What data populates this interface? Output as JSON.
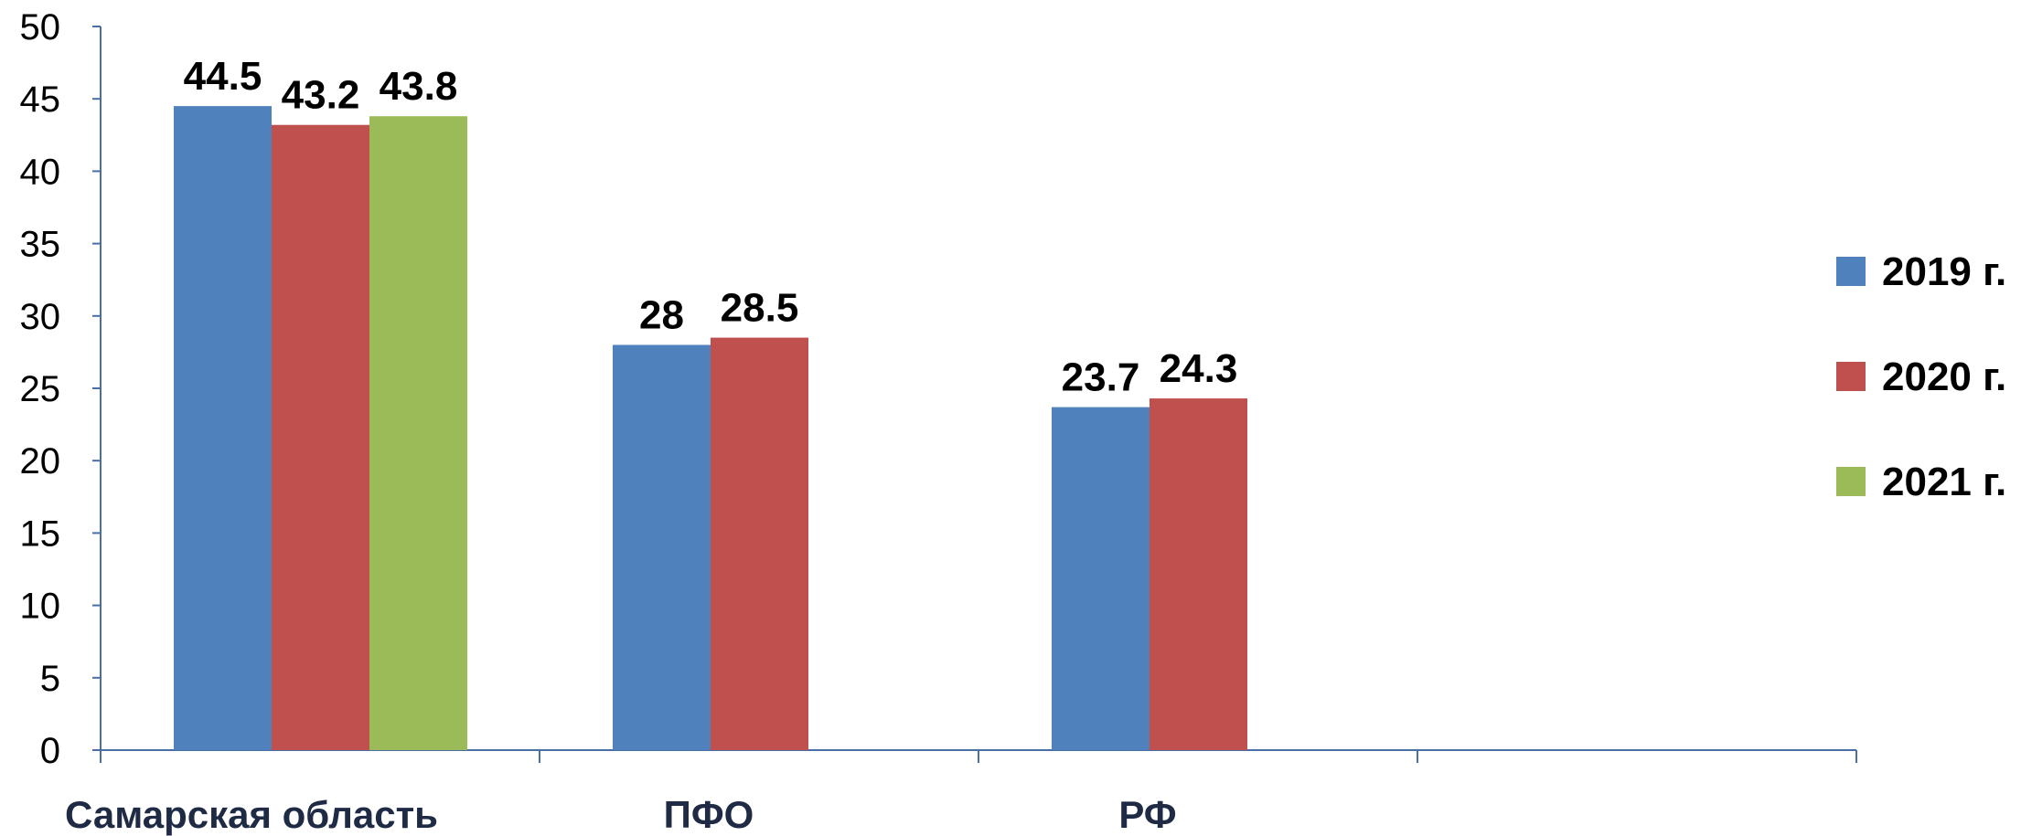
{
  "chart_data": {
    "type": "bar",
    "categories": [
      "Самарская область",
      "ПФО",
      "РФ",
      ""
    ],
    "series": [
      {
        "name": "2019 г.",
        "color": "#4f81bd",
        "values": [
          44.5,
          28,
          23.7,
          null
        ]
      },
      {
        "name": "2020 г.",
        "color": "#c0504d",
        "values": [
          43.2,
          28.5,
          24.3,
          null
        ]
      },
      {
        "name": "2021 г.",
        "color": "#9bbb59",
        "values": [
          43.8,
          null,
          null,
          null
        ]
      }
    ],
    "yticks": [
      "0",
      "5",
      "10",
      "15",
      "20",
      "25",
      "30",
      "35",
      "40",
      "45",
      "50"
    ],
    "ylim": [
      0,
      50
    ],
    "grid": false,
    "legend": "right",
    "title": "",
    "xlabel": "",
    "ylabel": ""
  }
}
